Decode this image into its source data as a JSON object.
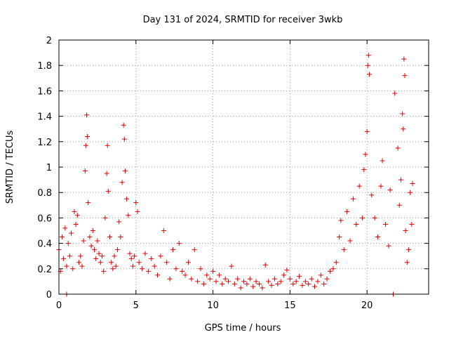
{
  "chart_data": {
    "type": "scatter",
    "title": "Day 131 of 2024, SRMTID for receiver 3wkb",
    "xlabel": "GPS time / hours",
    "ylabel": "SRMTID / TECUs",
    "xlim": [
      0,
      24
    ],
    "ylim": [
      0,
      2
    ],
    "xticks": [
      0,
      5,
      10,
      15,
      20
    ],
    "xtick_labels": [
      "0",
      "5",
      "10",
      "15",
      "20"
    ],
    "yticks": [
      0,
      0.2,
      0.4,
      0.6,
      0.8,
      1,
      1.2,
      1.4,
      1.6,
      1.8,
      2
    ],
    "ytick_labels": [
      "0",
      "0.2",
      "0.4",
      "0.6",
      "0.8",
      "1",
      "1.2",
      "1.4",
      "1.6",
      "1.8",
      "2"
    ],
    "grid": true,
    "marker": "+",
    "color": "#e00000",
    "series": [
      {
        "name": "SRMTID",
        "points": [
          [
            0.0,
            0.35
          ],
          [
            0.1,
            0.18
          ],
          [
            0.2,
            0.45
          ],
          [
            0.3,
            0.28
          ],
          [
            0.4,
            0.52
          ],
          [
            0.5,
            0.22
          ],
          [
            0.5,
            0.0
          ],
          [
            0.6,
            0.4
          ],
          [
            0.7,
            0.3
          ],
          [
            0.8,
            0.48
          ],
          [
            0.9,
            0.2
          ],
          [
            1.0,
            0.65
          ],
          [
            1.1,
            0.55
          ],
          [
            1.2,
            0.62
          ],
          [
            1.3,
            0.25
          ],
          [
            1.4,
            0.3
          ],
          [
            1.5,
            0.22
          ],
          [
            1.6,
            0.42
          ],
          [
            1.7,
            0.97
          ],
          [
            1.75,
            1.17
          ],
          [
            1.8,
            1.41
          ],
          [
            1.85,
            1.24
          ],
          [
            1.9,
            0.72
          ],
          [
            2.0,
            0.45
          ],
          [
            2.1,
            0.38
          ],
          [
            2.2,
            0.5
          ],
          [
            2.3,
            0.35
          ],
          [
            2.4,
            0.28
          ],
          [
            2.5,
            0.42
          ],
          [
            2.6,
            0.32
          ],
          [
            2.7,
            0.25
          ],
          [
            2.8,
            0.3
          ],
          [
            2.9,
            0.18
          ],
          [
            3.0,
            0.6
          ],
          [
            3.1,
            0.95
          ],
          [
            3.15,
            1.17
          ],
          [
            3.2,
            0.81
          ],
          [
            3.3,
            0.45
          ],
          [
            3.4,
            0.25
          ],
          [
            3.5,
            0.2
          ],
          [
            3.6,
            0.3
          ],
          [
            3.7,
            0.22
          ],
          [
            3.8,
            0.35
          ],
          [
            3.9,
            0.57
          ],
          [
            4.0,
            0.45
          ],
          [
            4.1,
            0.88
          ],
          [
            4.2,
            1.33
          ],
          [
            4.25,
            1.22
          ],
          [
            4.3,
            0.97
          ],
          [
            4.4,
            0.75
          ],
          [
            4.5,
            0.62
          ],
          [
            4.6,
            0.32
          ],
          [
            4.7,
            0.28
          ],
          [
            4.8,
            0.22
          ],
          [
            4.9,
            0.3
          ],
          [
            5.0,
            0.72
          ],
          [
            5.1,
            0.65
          ],
          [
            5.2,
            0.25
          ],
          [
            5.4,
            0.2
          ],
          [
            5.6,
            0.32
          ],
          [
            5.8,
            0.18
          ],
          [
            6.0,
            0.28
          ],
          [
            6.2,
            0.22
          ],
          [
            6.4,
            0.15
          ],
          [
            6.6,
            0.3
          ],
          [
            6.8,
            0.5
          ],
          [
            7.0,
            0.25
          ],
          [
            7.2,
            0.12
          ],
          [
            7.4,
            0.35
          ],
          [
            7.6,
            0.2
          ],
          [
            7.8,
            0.4
          ],
          [
            8.0,
            0.18
          ],
          [
            8.2,
            0.15
          ],
          [
            8.4,
            0.25
          ],
          [
            8.6,
            0.12
          ],
          [
            8.8,
            0.35
          ],
          [
            9.0,
            0.1
          ],
          [
            9.2,
            0.2
          ],
          [
            9.4,
            0.08
          ],
          [
            9.6,
            0.15
          ],
          [
            9.8,
            0.12
          ],
          [
            10.0,
            0.18
          ],
          [
            10.2,
            0.1
          ],
          [
            10.4,
            0.15
          ],
          [
            10.6,
            0.08
          ],
          [
            10.8,
            0.12
          ],
          [
            11.0,
            0.1
          ],
          [
            11.2,
            0.22
          ],
          [
            11.4,
            0.08
          ],
          [
            11.6,
            0.12
          ],
          [
            11.8,
            0.05
          ],
          [
            12.0,
            0.1
          ],
          [
            12.2,
            0.08
          ],
          [
            12.4,
            0.12
          ],
          [
            12.6,
            0.06
          ],
          [
            12.8,
            0.1
          ],
          [
            13.0,
            0.08
          ],
          [
            13.2,
            0.05
          ],
          [
            13.4,
            0.23
          ],
          [
            13.6,
            0.1
          ],
          [
            13.8,
            0.07
          ],
          [
            14.0,
            0.12
          ],
          [
            14.2,
            0.08
          ],
          [
            14.4,
            0.1
          ],
          [
            14.6,
            0.15
          ],
          [
            14.8,
            0.19
          ],
          [
            15.0,
            0.12
          ],
          [
            15.2,
            0.08
          ],
          [
            15.4,
            0.1
          ],
          [
            15.6,
            0.14
          ],
          [
            15.8,
            0.07
          ],
          [
            16.0,
            0.1
          ],
          [
            16.2,
            0.08
          ],
          [
            16.4,
            0.12
          ],
          [
            16.6,
            0.06
          ],
          [
            16.8,
            0.1
          ],
          [
            17.0,
            0.15
          ],
          [
            17.2,
            0.08
          ],
          [
            17.4,
            0.12
          ],
          [
            17.6,
            0.18
          ],
          [
            17.8,
            0.2
          ],
          [
            18.0,
            0.25
          ],
          [
            18.2,
            0.45
          ],
          [
            18.3,
            0.58
          ],
          [
            18.5,
            0.35
          ],
          [
            18.7,
            0.65
          ],
          [
            18.9,
            0.42
          ],
          [
            19.1,
            0.75
          ],
          [
            19.3,
            0.55
          ],
          [
            19.5,
            0.85
          ],
          [
            19.7,
            0.6
          ],
          [
            19.8,
            0.98
          ],
          [
            19.9,
            1.1
          ],
          [
            20.0,
            1.28
          ],
          [
            20.05,
            1.8
          ],
          [
            20.1,
            1.88
          ],
          [
            20.15,
            1.73
          ],
          [
            20.3,
            0.78
          ],
          [
            20.5,
            0.6
          ],
          [
            20.7,
            0.45
          ],
          [
            20.9,
            0.85
          ],
          [
            21.0,
            1.05
          ],
          [
            21.2,
            0.55
          ],
          [
            21.4,
            0.38
          ],
          [
            21.5,
            0.82
          ],
          [
            21.7,
            0.0
          ],
          [
            21.8,
            1.58
          ],
          [
            22.0,
            1.15
          ],
          [
            22.1,
            0.7
          ],
          [
            22.2,
            0.9
          ],
          [
            22.3,
            1.42
          ],
          [
            22.35,
            1.3
          ],
          [
            22.4,
            1.85
          ],
          [
            22.45,
            1.72
          ],
          [
            22.5,
            0.5
          ],
          [
            22.6,
            0.25
          ],
          [
            22.7,
            0.35
          ],
          [
            22.8,
            0.8
          ],
          [
            22.9,
            0.55
          ],
          [
            22.95,
            0.87
          ]
        ]
      }
    ]
  }
}
